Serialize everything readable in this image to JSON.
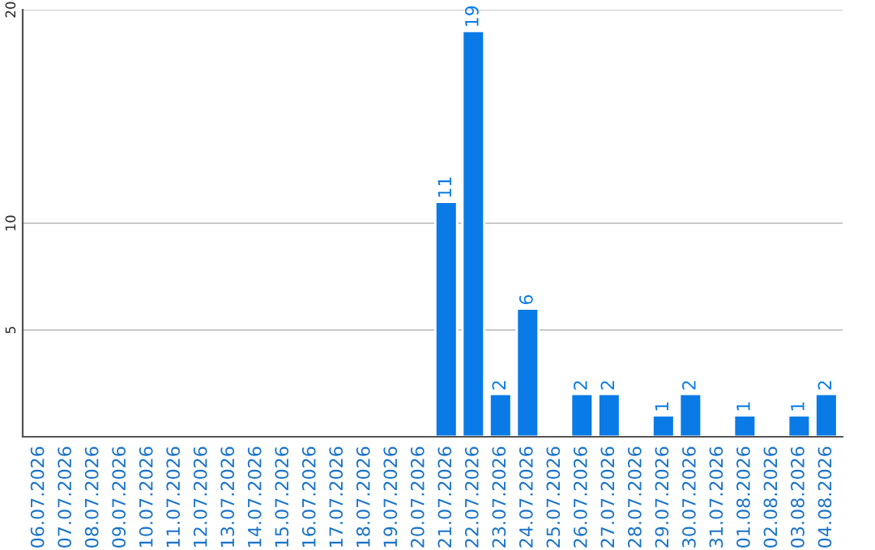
{
  "chart_data": {
    "type": "bar",
    "categories": [
      "06.07.2026",
      "07.07.2026",
      "08.07.2026",
      "09.07.2026",
      "10.07.2026",
      "11.07.2026",
      "12.07.2026",
      "13.07.2026",
      "14.07.2026",
      "15.07.2026",
      "16.07.2026",
      "17.07.2026",
      "18.07.2026",
      "19.07.2026",
      "20.07.2026",
      "21.07.2026",
      "22.07.2026",
      "23.07.2026",
      "24.07.2026",
      "25.07.2026",
      "26.07.2026",
      "27.07.2026",
      "28.07.2026",
      "29.07.2026",
      "30.07.2026",
      "31.07.2026",
      "01.08.2026",
      "02.08.2026",
      "03.08.2026",
      "04.08.2026"
    ],
    "values": [
      null,
      null,
      null,
      null,
      null,
      null,
      null,
      null,
      null,
      null,
      null,
      null,
      null,
      null,
      null,
      11,
      19,
      2,
      6,
      null,
      2,
      2,
      null,
      1,
      2,
      null,
      1,
      null,
      1,
      2
    ],
    "value_labels": [
      null,
      null,
      null,
      null,
      null,
      null,
      null,
      null,
      null,
      null,
      null,
      null,
      null,
      null,
      null,
      "11",
      "19",
      "2",
      "6",
      null,
      "2",
      "2",
      null,
      "1",
      "2",
      null,
      "1",
      null,
      "1",
      "2"
    ],
    "color": "#0a7be6",
    "ylim": [
      0,
      20
    ],
    "yticks": [
      5,
      10,
      20
    ],
    "grid": "y",
    "legend": false
  }
}
